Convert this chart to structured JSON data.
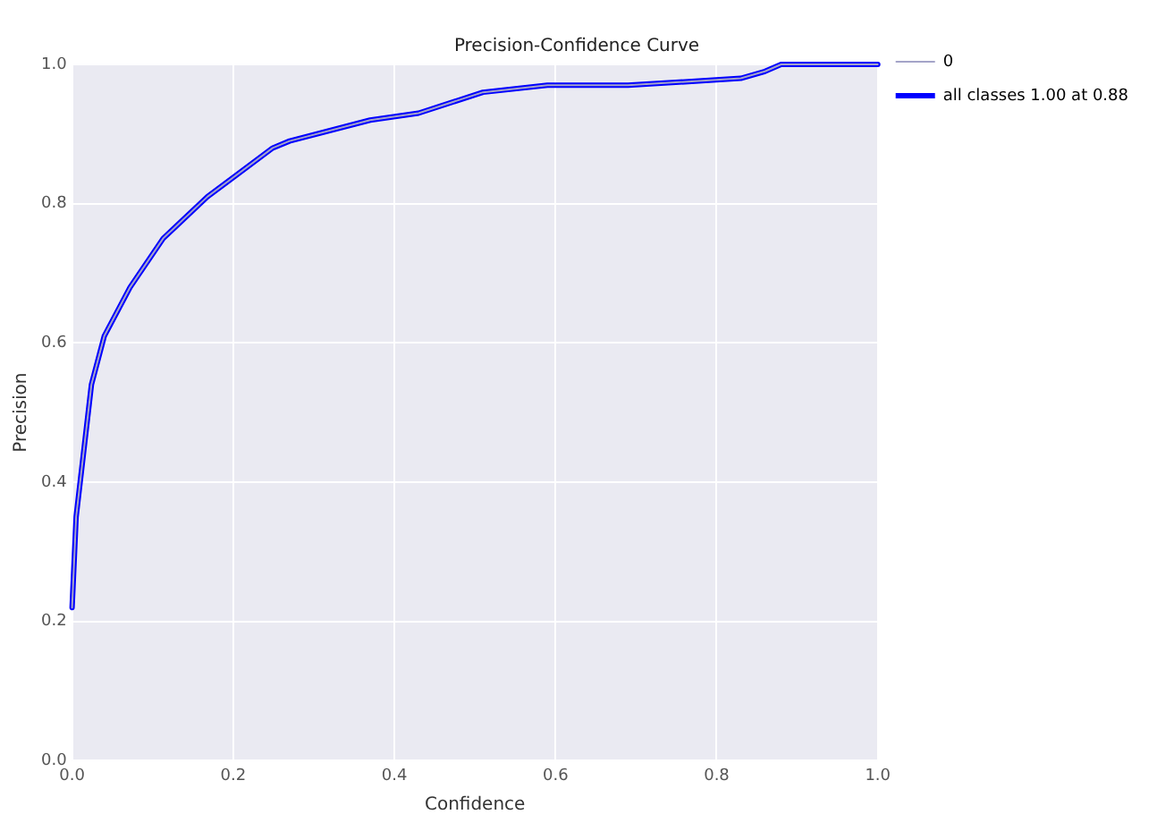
{
  "chart_data": {
    "type": "line",
    "title": "Precision-Confidence Curve",
    "xlabel": "Confidence",
    "ylabel": "Precision",
    "x": [
      0,
      0.005,
      0.024,
      0.04,
      0.072,
      0.113,
      0.168,
      0.249,
      0.27,
      0.37,
      0.43,
      0.51,
      0.59,
      0.69,
      0.83,
      0.86,
      0.88,
      1.0
    ],
    "series": [
      {
        "name": "0",
        "color": "#a4a4c8",
        "values": [
          0.22,
          0.35,
          0.54,
          0.61,
          0.68,
          0.75,
          0.81,
          0.88,
          0.89,
          0.92,
          0.93,
          0.96,
          0.97,
          0.97,
          0.98,
          0.99,
          1.0,
          1.0
        ]
      },
      {
        "name": "all classes 1.00 at 0.88",
        "color": "#0000ff",
        "values": [
          0.22,
          0.35,
          0.54,
          0.61,
          0.68,
          0.75,
          0.81,
          0.88,
          0.89,
          0.92,
          0.93,
          0.96,
          0.97,
          0.97,
          0.98,
          0.99,
          1.0,
          1.0
        ]
      }
    ],
    "xlim": [
      0,
      1
    ],
    "ylim": [
      0,
      1
    ],
    "xticks": [
      {
        "value": 0,
        "label": "0.0"
      },
      0.2,
      0.4,
      0.6,
      0.8,
      {
        "value": 1,
        "label": "1.0"
      }
    ],
    "yticks": [
      {
        "value": 0,
        "label": "0.0"
      },
      0.2,
      0.4,
      0.6,
      0.8,
      {
        "value": 1,
        "label": "1.0"
      }
    ],
    "grid": true,
    "legend": "top right",
    "marker": "none",
    "line_style": "solid"
  }
}
